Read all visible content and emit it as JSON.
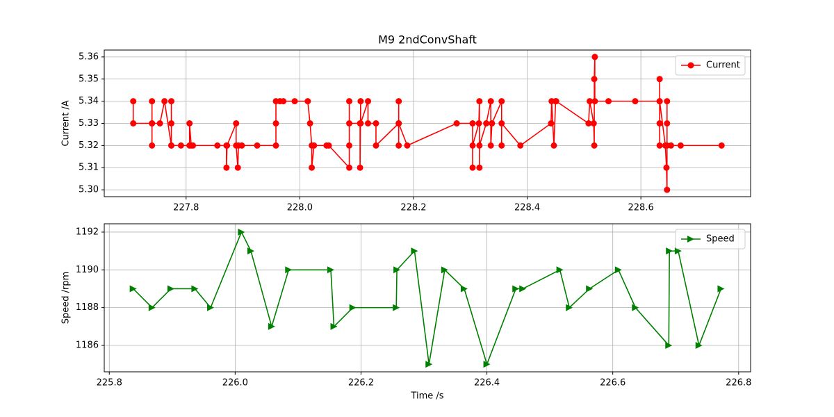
{
  "chart_data": [
    {
      "type": "line",
      "title": "M9 2ndConvShaft",
      "ylabel": "Current /A",
      "x": [
        227.707,
        227.707,
        227.74,
        227.74,
        227.74,
        227.74,
        227.754,
        227.762,
        227.774,
        227.774,
        227.774,
        227.774,
        227.791,
        227.806,
        227.806,
        227.809,
        227.812,
        227.855,
        227.871,
        227.871,
        227.872,
        227.888,
        227.888,
        227.891,
        227.892,
        227.898,
        227.925,
        227.958,
        227.958,
        227.958,
        227.965,
        227.971,
        227.991,
        228.014,
        228.018,
        228.021,
        228.021,
        228.025,
        228.047,
        228.051,
        228.087,
        228.087,
        228.087,
        228.087,
        228.106,
        228.106,
        228.107,
        228.107,
        228.12,
        228.12,
        228.134,
        228.134,
        228.174,
        228.174,
        228.174,
        228.174,
        228.189,
        228.276,
        228.304,
        228.304,
        228.304,
        228.315,
        228.316,
        228.316,
        228.316,
        228.328,
        228.336,
        228.336,
        228.338,
        228.355,
        228.355,
        228.355,
        228.388,
        228.442,
        228.443,
        228.447,
        228.45,
        228.451,
        228.508,
        228.51,
        228.517,
        228.518,
        228.518,
        228.519,
        228.519,
        228.543,
        228.59,
        228.633,
        228.633,
        228.633,
        228.633,
        228.633,
        228.643,
        228.645,
        228.646,
        228.646,
        228.646,
        228.646,
        228.653,
        228.67,
        228.742
      ],
      "series": [
        {
          "name": "Current",
          "color": "#ff0000",
          "marker": "circle",
          "values": [
            5.34,
            5.33,
            5.33,
            5.34,
            5.32,
            5.33,
            5.33,
            5.34,
            5.32,
            5.34,
            5.33,
            5.32,
            5.32,
            5.32,
            5.33,
            5.32,
            5.32,
            5.32,
            5.32,
            5.31,
            5.32,
            5.33,
            5.32,
            5.31,
            5.32,
            5.32,
            5.32,
            5.32,
            5.33,
            5.34,
            5.34,
            5.34,
            5.34,
            5.34,
            5.33,
            5.32,
            5.31,
            5.32,
            5.32,
            5.32,
            5.31,
            5.32,
            5.34,
            5.33,
            5.33,
            5.31,
            5.34,
            5.33,
            5.34,
            5.33,
            5.33,
            5.32,
            5.33,
            5.34,
            5.32,
            5.33,
            5.32,
            5.33,
            5.33,
            5.31,
            5.32,
            5.33,
            5.34,
            5.31,
            5.32,
            5.33,
            5.34,
            5.32,
            5.33,
            5.34,
            5.32,
            5.33,
            5.32,
            5.33,
            5.34,
            5.32,
            5.34,
            5.34,
            5.33,
            5.34,
            5.33,
            5.32,
            5.35,
            5.36,
            5.34,
            5.34,
            5.34,
            5.34,
            5.35,
            5.33,
            5.32,
            5.34,
            5.32,
            5.31,
            5.3,
            5.33,
            5.34,
            5.32,
            5.32,
            5.32,
            5.32
          ]
        }
      ],
      "xlim": [
        227.656,
        228.793
      ],
      "ylim": [
        5.2969,
        5.3631
      ],
      "xticks": [
        227.8,
        {
          "value": 228.0,
          "label": "228.0"
        },
        228.2,
        228.4,
        228.6
      ],
      "yticks": [
        {
          "value": 5.3,
          "label": "5.30"
        },
        5.31,
        5.32,
        5.33,
        5.34,
        5.35,
        5.36
      ],
      "grid": true,
      "legend": "upper-right"
    },
    {
      "type": "line",
      "xlabel": "Time /s",
      "ylabel": "Speed /rpm",
      "x": [
        225.838,
        225.868,
        225.898,
        225.936,
        225.961,
        226.01,
        226.025,
        226.058,
        226.085,
        226.152,
        226.157,
        226.187,
        226.256,
        226.257,
        226.285,
        226.308,
        226.333,
        226.364,
        226.4,
        226.446,
        226.457,
        226.516,
        226.531,
        226.563,
        226.609,
        226.636,
        226.689,
        226.69,
        226.704,
        226.737,
        226.772
      ],
      "series": [
        {
          "name": "Speed",
          "color": "#008000",
          "marker": "triangle-right",
          "values": [
            1189,
            1188,
            1189,
            1189,
            1188,
            1192,
            1191,
            1187,
            1190,
            1190,
            1187,
            1188,
            1188,
            1190,
            1191,
            1185,
            1190,
            1189,
            1185,
            1189,
            1189,
            1190,
            1188,
            1189,
            1190,
            1188,
            1186,
            1191,
            1191,
            1186,
            1189
          ]
        }
      ],
      "xlim": [
        225.792,
        226.819
      ],
      "ylim": [
        1184.6,
        1192.44
      ],
      "xticks": [
        225.8,
        {
          "value": 226.0,
          "label": "226.0"
        },
        226.2,
        226.4,
        226.6,
        226.8
      ],
      "yticks": [
        1186,
        1188,
        1190,
        1192
      ],
      "grid": true,
      "legend": "upper-right"
    }
  ]
}
